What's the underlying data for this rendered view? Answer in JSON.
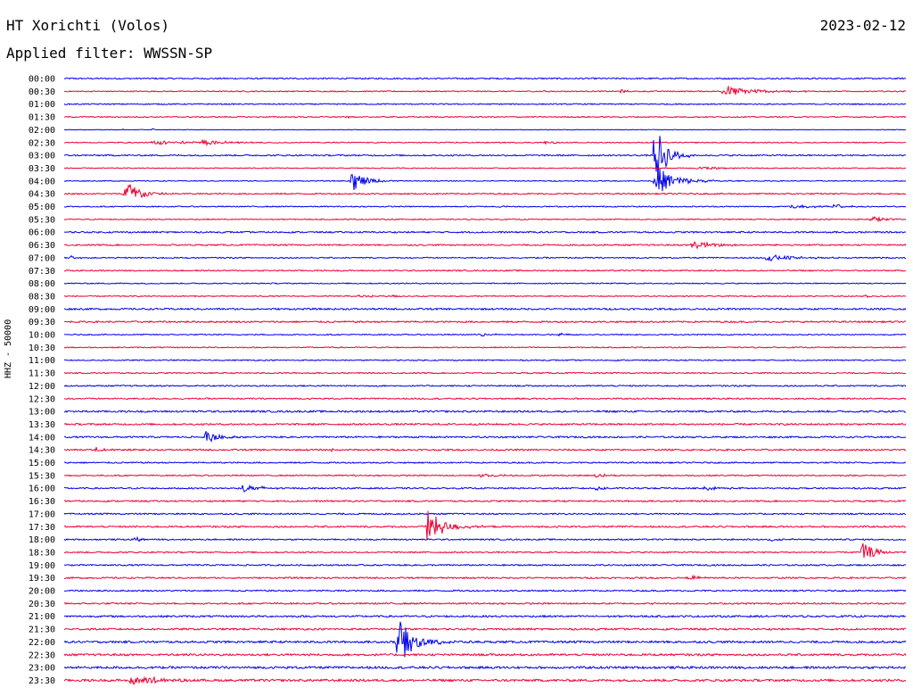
{
  "header": {
    "station": "HT Xorichti (Volos)",
    "date": "2023-02-12",
    "filter": "Applied filter: WWSSN-SP"
  },
  "axis_label": "HHZ - 50000",
  "colors": {
    "odd": "#0000ee",
    "even": "#ee0033",
    "text": "#000000"
  },
  "chart_data": {
    "type": "line",
    "title": "HT Xorichti (Volos)",
    "subtitle": "Applied filter: WWSSN-SP",
    "ylabel": "HHZ - 50000",
    "xlim": [
      0,
      30
    ],
    "x_unit": "minutes",
    "rows": [
      "00:00",
      "00:30",
      "01:00",
      "01:30",
      "02:00",
      "02:30",
      "03:00",
      "03:30",
      "04:00",
      "04:30",
      "05:00",
      "05:30",
      "06:00",
      "06:30",
      "07:00",
      "07:30",
      "08:00",
      "08:30",
      "09:00",
      "09:30",
      "10:00",
      "10:30",
      "11:00",
      "11:30",
      "12:00",
      "12:30",
      "13:00",
      "13:30",
      "14:00",
      "14:30",
      "15:00",
      "15:30",
      "16:00",
      "16:30",
      "17:00",
      "17:30",
      "18:00",
      "18:30",
      "19:00",
      "19:30",
      "20:00",
      "20:30",
      "21:00",
      "21:30",
      "22:00",
      "22:30",
      "23:00",
      "23:30"
    ],
    "noise": [
      1.5,
      1.2,
      1.3,
      1.2,
      0.6,
      1.1,
      1.6,
      1.0,
      1.0,
      1.5,
      1.2,
      1.2,
      1.7,
      1.6,
      1.3,
      1.4,
      1.2,
      1.1,
      1.9,
      1.8,
      1.2,
      1.2,
      1.3,
      1.3,
      1.5,
      1.5,
      2.0,
      1.9,
      1.8,
      1.8,
      1.5,
      1.4,
      1.6,
      1.7,
      1.6,
      1.8,
      1.5,
      1.5,
      1.6,
      1.7,
      1.6,
      1.7,
      2.0,
      2.0,
      2.3,
      2.3,
      2.5,
      2.5
    ],
    "events": [
      {
        "row": 1,
        "t": 23.4,
        "amp": 7,
        "dur": 1.8
      },
      {
        "row": 1,
        "t": 19.8,
        "amp": 2,
        "dur": 0.5
      },
      {
        "row": 1,
        "t": 17.0,
        "amp": 2,
        "dur": 0.4
      },
      {
        "row": 3,
        "t": 10.0,
        "amp": 2,
        "dur": 0.3
      },
      {
        "row": 4,
        "t": 2.0,
        "amp": 2,
        "dur": 0.2
      },
      {
        "row": 4,
        "t": 3.1,
        "amp": 2,
        "dur": 0.2
      },
      {
        "row": 5,
        "t": 3.1,
        "amp": 3,
        "dur": 2.2
      },
      {
        "row": 5,
        "t": 4.9,
        "amp": 3,
        "dur": 1.5
      },
      {
        "row": 5,
        "t": 17.1,
        "amp": 2,
        "dur": 0.5
      },
      {
        "row": 6,
        "t": 21.0,
        "amp": 42,
        "dur": 0.7
      },
      {
        "row": 7,
        "t": 22.5,
        "amp": 3,
        "dur": 1.2
      },
      {
        "row": 8,
        "t": 10.2,
        "amp": 14,
        "dur": 0.8
      },
      {
        "row": 8,
        "t": 21.0,
        "amp": 20,
        "dur": 1.2
      },
      {
        "row": 9,
        "t": 2.1,
        "amp": 22,
        "dur": 0.8
      },
      {
        "row": 10,
        "t": 25.9,
        "amp": 3,
        "dur": 1.2
      },
      {
        "row": 10,
        "t": 27.4,
        "amp": 3,
        "dur": 0.8
      },
      {
        "row": 10,
        "t": 15.5,
        "amp": 2,
        "dur": 0.3
      },
      {
        "row": 11,
        "t": 28.7,
        "amp": 4,
        "dur": 1.0
      },
      {
        "row": 13,
        "t": 22.3,
        "amp": 5,
        "dur": 1.5
      },
      {
        "row": 14,
        "t": 25.0,
        "amp": 4,
        "dur": 1.8
      },
      {
        "row": 14,
        "t": 0.2,
        "amp": 2,
        "dur": 0.6
      },
      {
        "row": 17,
        "t": 10.5,
        "amp": 2,
        "dur": 0.8
      },
      {
        "row": 17,
        "t": 11.7,
        "amp": 2,
        "dur": 0.3
      },
      {
        "row": 17,
        "t": 28.5,
        "amp": 2,
        "dur": 0.3
      },
      {
        "row": 20,
        "t": 14.8,
        "amp": 2,
        "dur": 0.8
      },
      {
        "row": 20,
        "t": 17.6,
        "amp": 2,
        "dur": 0.8
      },
      {
        "row": 28,
        "t": 5.0,
        "amp": 8,
        "dur": 0.8
      },
      {
        "row": 29,
        "t": 1.1,
        "amp": 5,
        "dur": 0.5
      },
      {
        "row": 29,
        "t": 9.5,
        "amp": 2,
        "dur": 0.3
      },
      {
        "row": 31,
        "t": 14.8,
        "amp": 2,
        "dur": 1.4
      },
      {
        "row": 31,
        "t": 18.9,
        "amp": 3,
        "dur": 0.6
      },
      {
        "row": 32,
        "t": 6.3,
        "amp": 6,
        "dur": 1.0
      },
      {
        "row": 32,
        "t": 18.9,
        "amp": 3,
        "dur": 0.6
      },
      {
        "row": 32,
        "t": 22.7,
        "amp": 2,
        "dur": 1.5
      },
      {
        "row": 35,
        "t": 12.9,
        "amp": 21,
        "dur": 1.0
      },
      {
        "row": 36,
        "t": 2.5,
        "amp": 9,
        "dur": 0.2
      },
      {
        "row": 36,
        "t": 25.0,
        "amp": 2,
        "dur": 1.5
      },
      {
        "row": 37,
        "t": 28.4,
        "amp": 12,
        "dur": 0.8
      },
      {
        "row": 39,
        "t": 22.2,
        "amp": 3,
        "dur": 0.8
      },
      {
        "row": 44,
        "t": 11.8,
        "amp": 33,
        "dur": 1.0
      },
      {
        "row": 47,
        "t": 2.3,
        "amp": 7,
        "dur": 1.5
      }
    ]
  }
}
